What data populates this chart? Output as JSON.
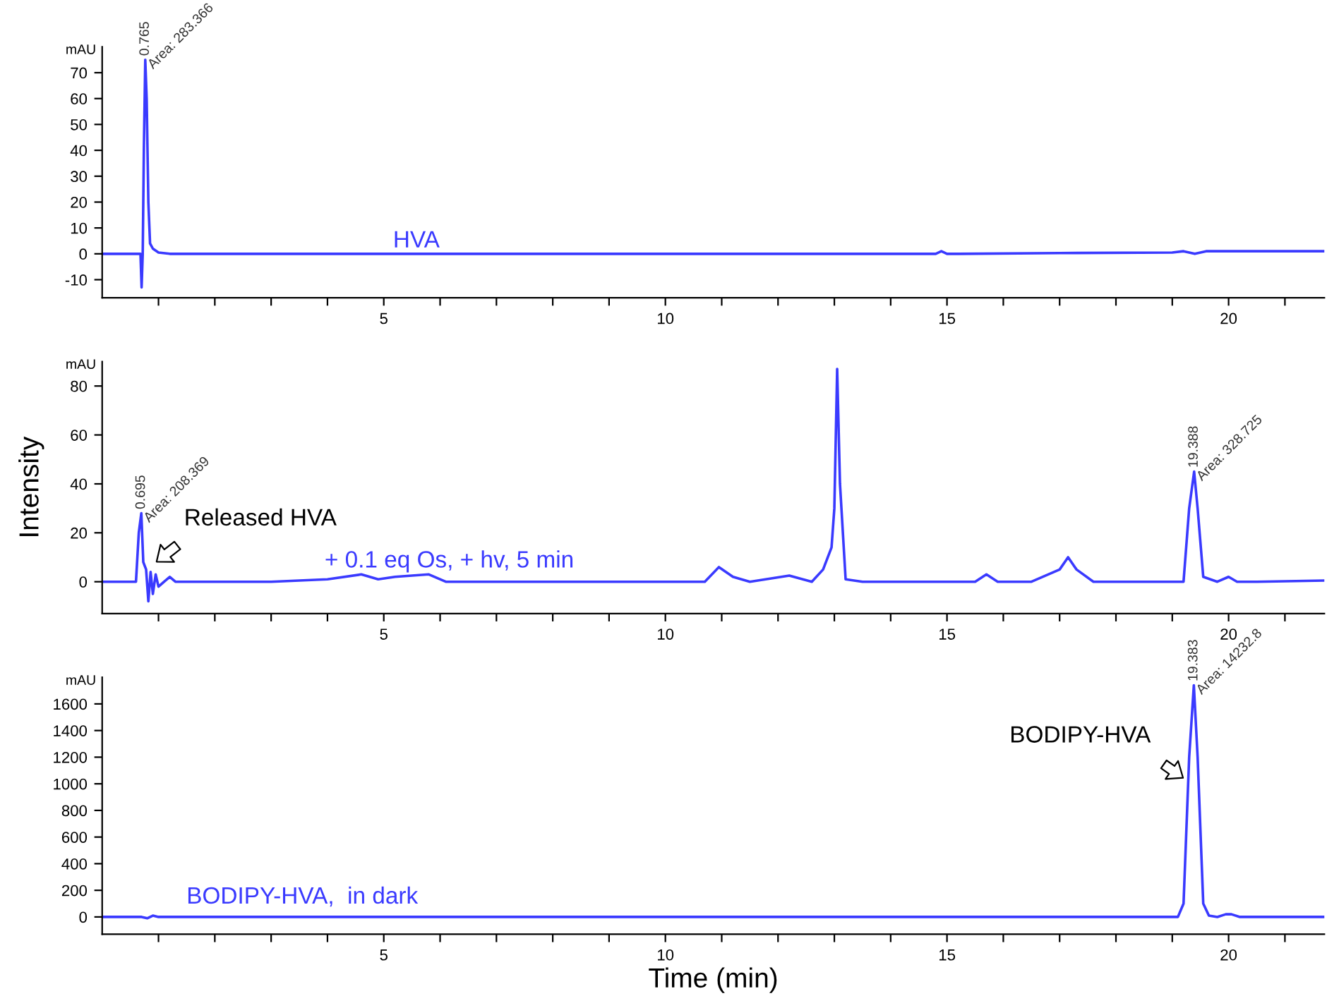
{
  "chart_data": [
    {
      "type": "line",
      "ylabel": "mAU",
      "xlim": [
        0,
        21.7
      ],
      "ylim": [
        -17,
        80
      ],
      "xticks": [
        {
          "value": 1,
          "label": null
        },
        {
          "value": 2,
          "label": null
        },
        {
          "value": 3,
          "label": null
        },
        {
          "value": 4,
          "label": null
        },
        5,
        {
          "value": 6,
          "label": null
        },
        {
          "value": 7,
          "label": null
        },
        {
          "value": 8,
          "label": null
        },
        {
          "value": 9,
          "label": null
        },
        10,
        {
          "value": 11,
          "label": null
        },
        {
          "value": 12,
          "label": null
        },
        {
          "value": 13,
          "label": null
        },
        {
          "value": 14,
          "label": null
        },
        15,
        {
          "value": 16,
          "label": null
        },
        {
          "value": 17,
          "label": null
        },
        {
          "value": 18,
          "label": null
        },
        {
          "value": 19,
          "label": null
        },
        20,
        {
          "value": 21,
          "label": null
        }
      ],
      "yticks": [
        -10,
        0,
        10,
        20,
        30,
        40,
        50,
        60,
        70
      ],
      "series": [
        {
          "color": "#3a3aff",
          "x": [
            0,
            0.68,
            0.7,
            0.72,
            0.74,
            0.765,
            0.79,
            0.82,
            0.85,
            0.9,
            1.0,
            1.2,
            2,
            5,
            8,
            10,
            12,
            14,
            14.8,
            14.9,
            15.0,
            15.2,
            17,
            19,
            19.2,
            19.4,
            19.6,
            21.7
          ],
          "values": [
            0,
            0,
            -13,
            0,
            40,
            75,
            60,
            20,
            4,
            2,
            0.5,
            0,
            0,
            0,
            0,
            0,
            0,
            0,
            0,
            1,
            0,
            0,
            0.3,
            0.5,
            1,
            0,
            1,
            1
          ]
        }
      ],
      "annotations": [
        "HVA",
        {
          "text": "0.765",
          "x": 0.765,
          "y": 75
        },
        {
          "text": "Area: 283.366",
          "x": 0.765,
          "y": 75
        }
      ]
    },
    {
      "type": "line",
      "ylabel": "mAU",
      "xlim": [
        0,
        21.7
      ],
      "ylim": [
        -13,
        90
      ],
      "xticks": [
        {
          "value": 1,
          "label": null
        },
        {
          "value": 2,
          "label": null
        },
        {
          "value": 3,
          "label": null
        },
        {
          "value": 4,
          "label": null
        },
        5,
        {
          "value": 6,
          "label": null
        },
        {
          "value": 7,
          "label": null
        },
        {
          "value": 8,
          "label": null
        },
        {
          "value": 9,
          "label": null
        },
        10,
        {
          "value": 11,
          "label": null
        },
        {
          "value": 12,
          "label": null
        },
        {
          "value": 13,
          "label": null
        },
        {
          "value": 14,
          "label": null
        },
        15,
        {
          "value": 16,
          "label": null
        },
        {
          "value": 17,
          "label": null
        },
        {
          "value": 18,
          "label": null
        },
        {
          "value": 19,
          "label": null
        },
        20,
        {
          "value": 21,
          "label": null
        }
      ],
      "yticks": [
        0,
        20,
        40,
        60,
        80
      ],
      "series": [
        {
          "color": "#3a3aff",
          "x": [
            0,
            0.5,
            0.6,
            0.65,
            0.695,
            0.73,
            0.78,
            0.82,
            0.86,
            0.9,
            0.95,
            1.0,
            1.1,
            1.2,
            1.3,
            1.5,
            2,
            3,
            4,
            4.6,
            4.9,
            5.2,
            5.8,
            6.1,
            6.5,
            8,
            10,
            10.7,
            10.95,
            11.2,
            11.5,
            12.2,
            12.6,
            12.8,
            12.95,
            13.0,
            13.05,
            13.1,
            13.2,
            13.5,
            14,
            15,
            15.5,
            15.7,
            15.9,
            16.5,
            17.0,
            17.15,
            17.3,
            17.6,
            18.5,
            19.2,
            19.3,
            19.388,
            19.45,
            19.55,
            19.8,
            20.0,
            20.15,
            20.5,
            21.7
          ],
          "values": [
            0,
            0,
            0,
            20,
            28,
            8,
            5,
            -8,
            4,
            -5,
            3,
            -2,
            0,
            2,
            0,
            0,
            0,
            0,
            1,
            3,
            1,
            2,
            3,
            0,
            0,
            0,
            0,
            0,
            6,
            2,
            0,
            2.5,
            0,
            5,
            14,
            30,
            87,
            40,
            1,
            0,
            0,
            0,
            0,
            3,
            0,
            0,
            5,
            10,
            5,
            0,
            0,
            0,
            30,
            45,
            30,
            2,
            0,
            2,
            0,
            0,
            0.5
          ]
        }
      ],
      "annotations": [
        "Intensity",
        {
          "text": "0.695",
          "x": 0.695,
          "y": 28
        },
        {
          "text": "Area: 208.369",
          "x": 0.695,
          "y": 28
        },
        {
          "text": "19.388",
          "x": 19.388,
          "y": 45
        },
        {
          "text": "Area: 328.725",
          "x": 19.388,
          "y": 45
        },
        "Released HVA",
        "+ 0.1 eq Os, + hv, 5 min"
      ]
    },
    {
      "type": "line",
      "ylabel": "mAU",
      "xlabel": "Time (min)",
      "xlim": [
        0,
        21.7
      ],
      "ylim": [
        -130,
        1800
      ],
      "xticks": [
        {
          "value": 1,
          "label": null
        },
        {
          "value": 2,
          "label": null
        },
        {
          "value": 3,
          "label": null
        },
        {
          "value": 4,
          "label": null
        },
        5,
        {
          "value": 6,
          "label": null
        },
        {
          "value": 7,
          "label": null
        },
        {
          "value": 8,
          "label": null
        },
        {
          "value": 9,
          "label": null
        },
        10,
        {
          "value": 11,
          "label": null
        },
        {
          "value": 12,
          "label": null
        },
        {
          "value": 13,
          "label": null
        },
        {
          "value": 14,
          "label": null
        },
        15,
        {
          "value": 16,
          "label": null
        },
        {
          "value": 17,
          "label": null
        },
        {
          "value": 18,
          "label": null
        },
        {
          "value": 19,
          "label": null
        },
        20,
        {
          "value": 21,
          "label": null
        }
      ],
      "yticks": [
        0,
        200,
        400,
        600,
        800,
        1000,
        1200,
        1400,
        1600
      ],
      "series": [
        {
          "color": "#3a3aff",
          "x": [
            0,
            0.7,
            0.8,
            0.9,
            1,
            5,
            10,
            15,
            18.5,
            19.1,
            19.2,
            19.3,
            19.383,
            19.45,
            19.55,
            19.65,
            19.8,
            19.95,
            20.05,
            20.2,
            21.7
          ],
          "values": [
            0,
            0,
            -10,
            10,
            0,
            0,
            0,
            0,
            0,
            0,
            100,
            1200,
            1740,
            1200,
            100,
            10,
            0,
            20,
            20,
            0,
            0
          ]
        }
      ],
      "annotations": [
        {
          "text": "19.383",
          "x": 19.383,
          "y": 1740
        },
        {
          "text": "Area: 14232.8",
          "x": 19.383,
          "y": 1740
        },
        "BODIPY-HVA",
        "BODIPY-HVA,  in dark"
      ]
    }
  ]
}
